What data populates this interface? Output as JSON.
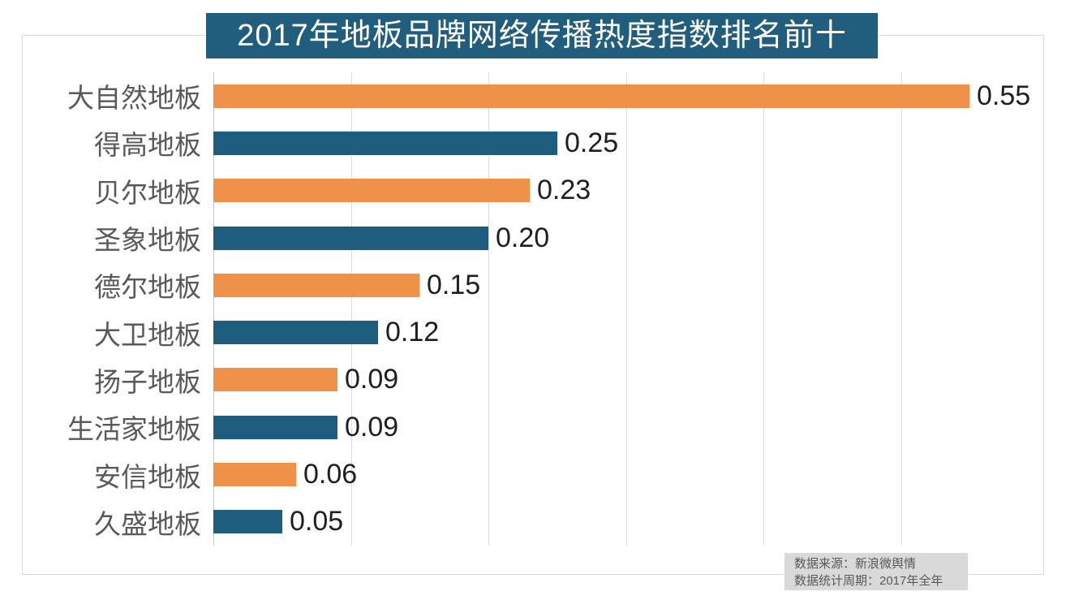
{
  "chart_data": {
    "type": "bar",
    "orientation": "horizontal",
    "title": "2017年地板品牌网络传播热度指数排名前十",
    "categories": [
      "大自然地板",
      "得高地板",
      "贝尔地板",
      "圣象地板",
      "德尔地板",
      "大卫地板",
      "扬子地板",
      "生活家地板",
      "安信地板",
      "久盛地板"
    ],
    "values": [
      0.55,
      0.25,
      0.23,
      0.2,
      0.15,
      0.12,
      0.09,
      0.09,
      0.06,
      0.05
    ],
    "value_labels": [
      "0.55",
      "0.25",
      "0.23",
      "0.20",
      "0.15",
      "0.12",
      "0.09",
      "0.09",
      "0.06",
      "0.05"
    ],
    "xlim": [
      0,
      0.6
    ],
    "gridline_interval": 0.1,
    "grid": "vertical-gridlines-only",
    "legend": "none",
    "bar_colors_alternating": [
      "#ef9149",
      "#1f5d7e"
    ]
  },
  "footer": {
    "line1": "数据来源：新浪微舆情",
    "line2": "数据统计周期：2017年全年"
  },
  "colors": {
    "orange_bar": "#ef9149",
    "blue_bar": "#1f5d7e",
    "title_background": "#215e7d",
    "title_text": "#ffffff",
    "gridline": "#dcdcdc",
    "axis_line": "#c4c4c4",
    "category_label": "#595959",
    "value_label": "#1f1f1f",
    "footer_background": "#d9d9d9",
    "footer_text": "#595959",
    "frame_border": "#d9d9d9"
  }
}
